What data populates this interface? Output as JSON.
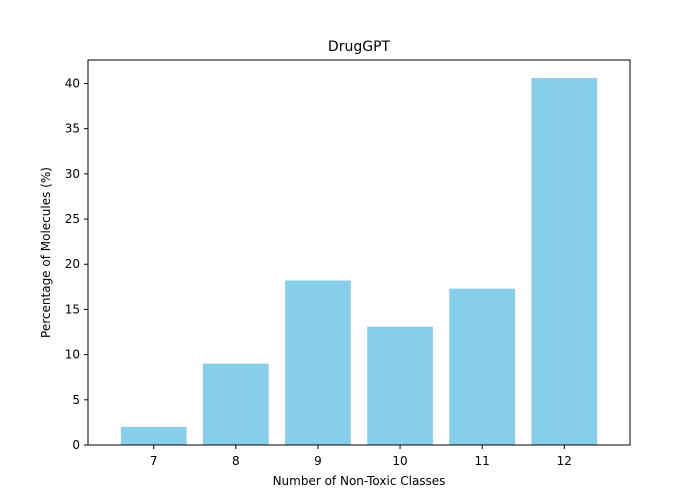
{
  "chart_data": {
    "type": "bar",
    "title": "DrugGPT",
    "xlabel": "Number of Non-Toxic Classes",
    "ylabel": "Percentage of Molecules (%)",
    "categories": [
      "7",
      "8",
      "9",
      "10",
      "11",
      "12"
    ],
    "values": [
      2.0,
      9.0,
      18.2,
      13.1,
      17.3,
      40.6
    ],
    "ylim": [
      0,
      42.6
    ],
    "yticks": [
      0,
      5,
      10,
      15,
      20,
      25,
      30,
      35,
      40
    ],
    "bar_color": "#87CEEB",
    "grid": false,
    "legend": "none"
  }
}
